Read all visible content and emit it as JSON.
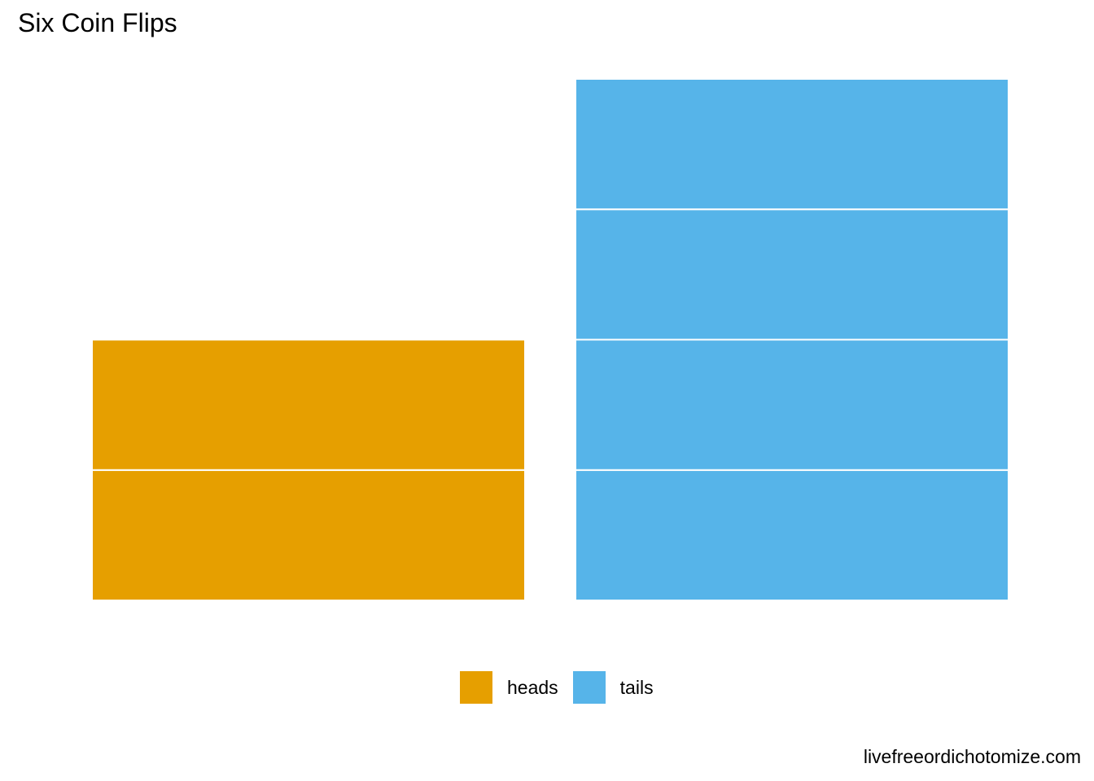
{
  "chart_data": {
    "type": "bar",
    "title": "Six Coin Flips",
    "categories": [
      "heads",
      "tails"
    ],
    "values": [
      2,
      4
    ],
    "stacked_units": true,
    "ylim": [
      0,
      4
    ],
    "grid": false,
    "legend": {
      "placement": "bottom",
      "entries": [
        {
          "label": "heads",
          "color": "#E69F00"
        },
        {
          "label": "tails",
          "color": "#56B4E9"
        }
      ]
    },
    "caption": "livefreeordichotomize.com"
  }
}
